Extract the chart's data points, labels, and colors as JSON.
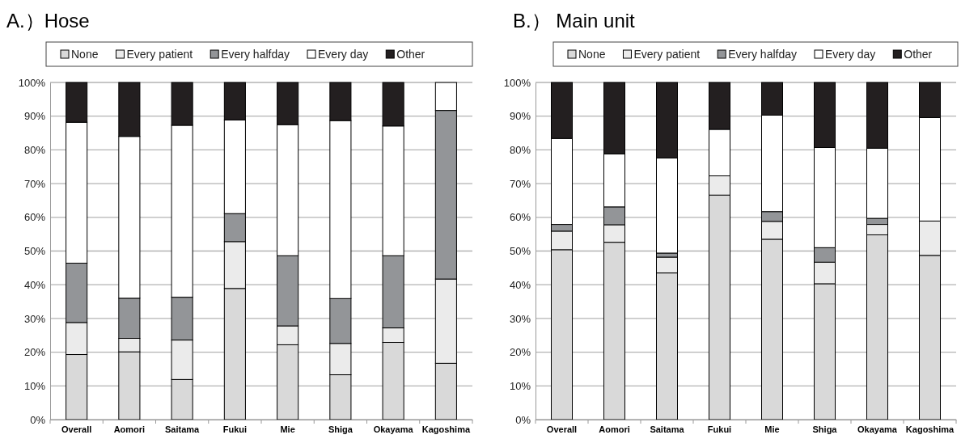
{
  "chart_data": [
    {
      "type": "bar",
      "title": "A.）Hose",
      "stacked": true,
      "categories": [
        "Overall",
        "Aomori",
        "Saitama",
        "Fukui",
        "Mie",
        "Shiga",
        "Okayama",
        "Kagoshima"
      ],
      "series": [
        {
          "name": "None",
          "color": "#d9d9d9",
          "values": [
            19.3,
            20.1,
            11.9,
            38.9,
            22.2,
            13.3,
            22.9,
            16.7
          ]
        },
        {
          "name": "Every patient",
          "color": "#ebebeb",
          "values": [
            9.5,
            4.0,
            11.7,
            13.9,
            5.6,
            9.3,
            4.3,
            25.0
          ]
        },
        {
          "name": "Every halfday",
          "color": "#939598",
          "values": [
            17.6,
            11.9,
            12.7,
            8.3,
            20.8,
            13.3,
            21.4,
            50.0
          ]
        },
        {
          "name": "Every day",
          "color": "#ffffff",
          "values": [
            41.8,
            48.0,
            51.0,
            27.8,
            38.9,
            52.8,
            38.5,
            8.3
          ]
        },
        {
          "name": "Other",
          "color": "#231f20",
          "values": [
            11.8,
            16.0,
            12.7,
            11.1,
            12.5,
            11.3,
            12.9,
            0
          ]
        }
      ],
      "ylim": [
        0,
        100
      ],
      "yticks": [
        {
          "value": 0,
          "label": "0%"
        },
        {
          "value": 10,
          "label": "10%"
        },
        {
          "value": 20,
          "label": "20%"
        },
        {
          "value": 30,
          "label": "30%"
        },
        {
          "value": 40,
          "label": "40%"
        },
        {
          "value": 50,
          "label": "50%"
        },
        {
          "value": 60,
          "label": "60%"
        },
        {
          "value": 70,
          "label": "70%"
        },
        {
          "value": 80,
          "label": "80%"
        },
        {
          "value": 90,
          "label": "90%"
        },
        {
          "value": 100,
          "label": "100%"
        }
      ],
      "grid": "y",
      "legend": "top"
    },
    {
      "type": "bar",
      "title": "B.） Main unit",
      "stacked": true,
      "categories": [
        "Overall",
        "Aomori",
        "Saitama",
        "Fukui",
        "Mie",
        "Shiga",
        "Okayama",
        "Kagoshima"
      ],
      "series": [
        {
          "name": "None",
          "color": "#d9d9d9",
          "values": [
            50.4,
            52.6,
            43.5,
            66.6,
            53.5,
            40.3,
            54.8,
            48.7
          ]
        },
        {
          "name": "Every patient",
          "color": "#ebebeb",
          "values": [
            5.5,
            5.2,
            4.7,
            5.7,
            5.3,
            6.4,
            3.1,
            10.2
          ]
        },
        {
          "name": "Every halfday",
          "color": "#939598",
          "values": [
            2.0,
            5.3,
            1.2,
            0,
            2.9,
            4.3,
            1.8,
            0
          ]
        },
        {
          "name": "Every day",
          "color": "#ffffff",
          "values": [
            25.5,
            15.7,
            28.2,
            13.8,
            28.6,
            29.7,
            20.8,
            30.7
          ]
        },
        {
          "name": "Other",
          "color": "#231f20",
          "values": [
            16.6,
            21.2,
            22.4,
            13.9,
            9.7,
            19.3,
            19.5,
            10.4
          ]
        }
      ],
      "ylim": [
        0,
        100
      ],
      "yticks": [
        {
          "value": 0,
          "label": "0%"
        },
        {
          "value": 10,
          "label": "10%"
        },
        {
          "value": 20,
          "label": "20%"
        },
        {
          "value": 30,
          "label": "30%"
        },
        {
          "value": 40,
          "label": "40%"
        },
        {
          "value": 50,
          "label": "50%"
        },
        {
          "value": 60,
          "label": "60%"
        },
        {
          "value": 70,
          "label": "70%"
        },
        {
          "value": 80,
          "label": "80%"
        },
        {
          "value": 90,
          "label": "90%"
        },
        {
          "value": 100,
          "label": "100%"
        }
      ],
      "grid": "y",
      "legend": "top"
    }
  ]
}
